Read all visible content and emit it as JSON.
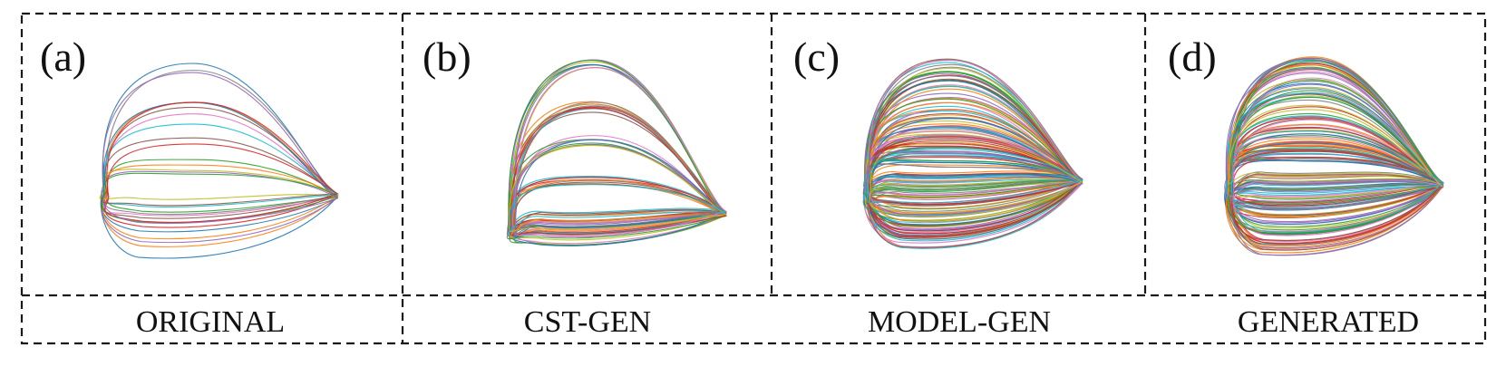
{
  "panels": [
    {
      "letter": "(a)",
      "caption": "ORIGINAL",
      "curve_count": 16
    },
    {
      "letter": "(b)",
      "caption": "CST-GEN",
      "curve_count": 40
    },
    {
      "letter": "(c)",
      "caption": "MODEL-GEN",
      "curve_count": 90
    },
    {
      "letter": "(d)",
      "caption": "GENERATED",
      "curve_count": 90
    }
  ],
  "palette": [
    "#1f77b4",
    "#ff7f0e",
    "#2ca02c",
    "#d62728",
    "#9467bd",
    "#8c564b",
    "#e377c2",
    "#7f7f7f",
    "#bcbd22",
    "#17becf"
  ]
}
